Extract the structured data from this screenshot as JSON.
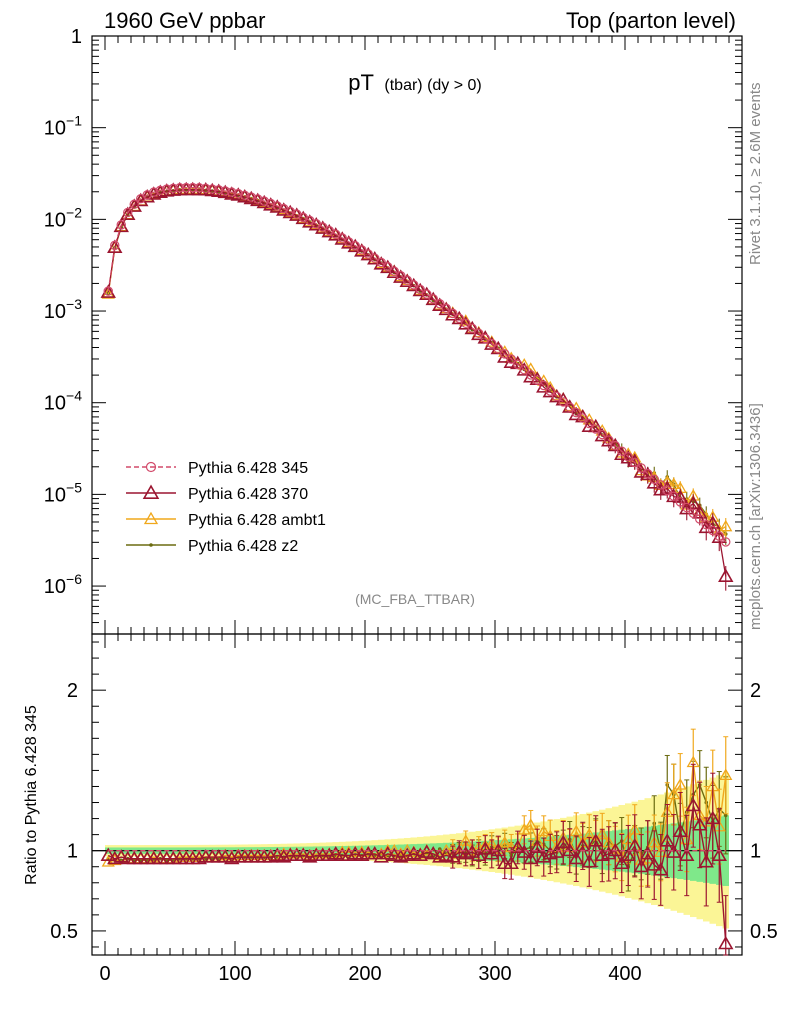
{
  "header": {
    "left": "1960 GeV ppbar",
    "right": "Top (parton level)"
  },
  "side": {
    "rivet": "Rivet 3.1.10, ≥ 2.6M events",
    "mcplots": "mcplots.cern.ch [arXiv:1306.3436]"
  },
  "analysis_tag": "(MC_FBA_TTBAR)",
  "colors": {
    "p345": "#d24a6a",
    "p370": "#9b1530",
    "ambt1": "#f0a81c",
    "z2": "#6b6b10",
    "band_inner": "#7fe88a",
    "band_outer": "#fbf596"
  },
  "chart_data": [
    {
      "type": "line",
      "title_main": "pT",
      "title_sub": "(tbar) (dy > 0)",
      "xlim": [
        -10,
        490
      ],
      "ylim": [
        3e-07,
        1
      ],
      "yscale": "log",
      "yticks": [
        {
          "base": "1",
          "exp": ""
        },
        {
          "base": "10",
          "exp": "−1"
        },
        {
          "base": "10",
          "exp": "−2"
        },
        {
          "base": "10",
          "exp": "−3"
        },
        {
          "base": "10",
          "exp": "−4"
        },
        {
          "base": "10",
          "exp": "−5"
        },
        {
          "base": "10",
          "exp": "−6"
        }
      ],
      "ytick_values": [
        1,
        0.1,
        0.01,
        0.001,
        0.0001,
        1e-05,
        1e-06
      ],
      "x": [
        2.5,
        7.5,
        12.5,
        17.5,
        22.5,
        27.5,
        32.5,
        37.5,
        42.5,
        47.5,
        52.5,
        57.5,
        62.5,
        67.5,
        72.5,
        77.5,
        82.5,
        87.5,
        92.5,
        97.5,
        102.5,
        107.5,
        112.5,
        117.5,
        122.5,
        127.5,
        132.5,
        137.5,
        142.5,
        147.5,
        152.5,
        157.5,
        162.5,
        167.5,
        172.5,
        177.5,
        182.5,
        187.5,
        192.5,
        197.5,
        202.5,
        207.5,
        212.5,
        217.5,
        222.5,
        227.5,
        232.5,
        237.5,
        242.5,
        247.5,
        252.5,
        257.5,
        262.5,
        267.5,
        272.5,
        277.5,
        282.5,
        287.5,
        292.5,
        297.5,
        302.5,
        307.5,
        312.5,
        317.5,
        322.5,
        327.5,
        332.5,
        337.5,
        342.5,
        347.5,
        352.5,
        357.5,
        362.5,
        367.5,
        372.5,
        377.5,
        382.5,
        387.5,
        392.5,
        397.5,
        402.5,
        407.5,
        412.5,
        417.5,
        422.5,
        427.5,
        432.5,
        437.5,
        442.5,
        447.5,
        452.5,
        457.5,
        462.5,
        467.5,
        472.5,
        477.5
      ],
      "reference": [
        0.00165,
        0.0052,
        0.0087,
        0.0119,
        0.0146,
        0.0168,
        0.0185,
        0.0198,
        0.0207,
        0.0214,
        0.0218,
        0.0221,
        0.0222,
        0.0222,
        0.0221,
        0.0218,
        0.0214,
        0.021,
        0.0204,
        0.0198,
        0.0191,
        0.0183,
        0.0175,
        0.0167,
        0.0158,
        0.0149,
        0.014,
        0.0131,
        0.0122,
        0.0114,
        0.0105,
        0.00973,
        0.00896,
        0.00823,
        0.00754,
        0.00688,
        0.00626,
        0.00568,
        0.00515,
        0.00465,
        0.00419,
        0.00377,
        0.00339,
        0.00304,
        0.00272,
        0.00243,
        0.00217,
        0.00193,
        0.00172,
        0.00153,
        0.00136,
        0.0012,
        0.00107,
        0.000943,
        0.000833,
        0.000735,
        0.000648,
        0.000571,
        0.000502,
        0.000442,
        0.000388,
        0.000341,
        0.000299,
        0.000262,
        0.000229,
        0.000201,
        0.000176,
        0.000154,
        0.000134,
        0.000117,
        0.000102,
        8.93e-05,
        7.79e-05,
        6.8e-05,
        5.92e-05,
        5.16e-05,
        4.49e-05,
        3.91e-05,
        3.4e-05,
        2.96e-05,
        2.57e-05,
        2.23e-05,
        1.94e-05,
        1.68e-05,
        1.46e-05,
        1.27e-05,
        1.1e-05,
        9.55e-06,
        8.28e-06,
        7.18e-06,
        6.22e-06,
        5.39e-06,
        4.67e-06,
        4.04e-06,
        3.5e-06,
        3.03e-06
      ],
      "legend": [
        {
          "label": "Pythia 6.428 345",
          "key": "p345"
        },
        {
          "label": "Pythia 6.428 370",
          "key": "p370"
        },
        {
          "label": "Pythia 6.428 ambt1",
          "key": "ambt1"
        },
        {
          "label": "Pythia 6.428 z2",
          "key": "z2"
        }
      ],
      "legend_position": "bottom-left"
    },
    {
      "type": "line",
      "ylabel": "Ratio to Pythia 6.428 345",
      "xlim": [
        -10,
        490
      ],
      "ylim": [
        0.35,
        2.35
      ],
      "yticks": [
        "0.5",
        "1",
        "2"
      ],
      "ytick_values": [
        0.5,
        1,
        2
      ],
      "xticks": [
        "0",
        "100",
        "200",
        "300",
        "400"
      ],
      "xtick_values": [
        0,
        100,
        200,
        300,
        400
      ],
      "series": [
        {
          "name": "Pythia 6.428 370",
          "key": "p370",
          "values": [
            0.97,
            0.95,
            0.96,
            0.95,
            0.95,
            0.95,
            0.95,
            0.95,
            0.95,
            0.95,
            0.95,
            0.95,
            0.95,
            0.95,
            0.95,
            0.96,
            0.96,
            0.96,
            0.96,
            0.95,
            0.96,
            0.96,
            0.96,
            0.96,
            0.96,
            0.96,
            0.97,
            0.96,
            0.97,
            0.97,
            0.97,
            0.96,
            0.97,
            0.97,
            0.97,
            0.98,
            0.97,
            0.97,
            0.98,
            0.97,
            0.98,
            0.98,
            0.96,
            0.98,
            0.97,
            0.96,
            0.97,
            0.98,
            0.97,
            0.99,
            0.98,
            0.96,
            0.97,
            0.96,
            0.99,
            0.98,
            0.99,
            0.97,
            1.01,
            0.98,
            1.0,
            0.92,
            0.92,
            1.02,
            0.99,
            0.95,
            1.02,
            0.96,
            0.98,
            0.99,
            1.05,
            1.0,
            0.95,
            1.03,
            0.93,
            1.06,
            0.97,
            0.98,
            1.0,
            0.92,
            0.97,
            1.03,
            0.9,
            0.98,
            0.91,
            0.88,
            1.06,
            0.99,
            1.12,
            0.97,
            1.28,
            1.16,
            0.93,
            1.2,
            0.97,
            0.42
          ]
        },
        {
          "name": "Pythia 6.428 ambt1",
          "key": "ambt1",
          "values": [
            0.93,
            0.94,
            0.96,
            0.95,
            0.95,
            0.95,
            0.95,
            0.96,
            0.95,
            0.95,
            0.95,
            0.96,
            0.96,
            0.96,
            0.96,
            0.96,
            0.96,
            0.96,
            0.97,
            0.96,
            0.97,
            0.97,
            0.97,
            0.97,
            0.97,
            0.97,
            0.97,
            0.98,
            0.98,
            0.98,
            0.98,
            0.97,
            0.98,
            0.98,
            0.98,
            0.98,
            0.99,
            0.99,
            0.99,
            0.99,
            0.99,
            0.98,
            0.98,
            1.0,
            1.0,
            0.98,
            1.0,
            0.99,
            0.98,
            1.0,
            0.98,
            0.97,
            1.0,
            1.01,
            0.98,
            1.06,
            1.0,
            1.02,
            1.03,
            1.04,
            1.01,
            1.05,
            1.02,
            1.02,
            1.13,
            1.16,
            1.06,
            1.12,
            1.09,
            1.02,
            1.08,
            1.02,
            1.12,
            1.05,
            1.1,
            1.06,
            1.1,
            1.05,
            1.01,
            0.96,
            1.07,
            1.13,
            0.94,
            0.95,
            1.05,
            0.99,
            1.24,
            1.35,
            1.41,
            1.07,
            1.55,
            1.22,
            1.18,
            1.4,
            1.15,
            1.47
          ]
        },
        {
          "name": "Pythia 6.428 z2",
          "key": "z2",
          "values": [
            0.95,
            0.94,
            0.94,
            0.95,
            0.94,
            0.94,
            0.94,
            0.94,
            0.95,
            0.94,
            0.94,
            0.95,
            0.95,
            0.95,
            0.95,
            0.95,
            0.95,
            0.95,
            0.95,
            0.95,
            0.96,
            0.96,
            0.96,
            0.96,
            0.95,
            0.96,
            0.96,
            0.96,
            0.96,
            0.96,
            0.97,
            0.96,
            0.96,
            0.97,
            0.96,
            0.97,
            0.97,
            0.96,
            0.97,
            0.97,
            0.98,
            0.97,
            0.98,
            0.97,
            0.97,
            0.97,
            0.97,
            0.98,
            0.96,
            0.98,
            0.96,
            1.01,
            0.98,
            0.98,
            0.99,
            0.99,
            0.97,
            1.0,
            0.98,
            1.02,
            1.01,
            1.03,
            0.97,
            1.02,
            1.01,
            1.02,
            1.06,
            1.04,
            1.0,
            0.99,
            1.02,
            1.07,
            0.97,
            1.03,
            1.02,
            1.07,
            0.99,
            1.05,
            1.03,
            1.06,
            0.9,
            1.0,
            0.98,
            1.02,
            1.17,
            1.0,
            1.41,
            1.35,
            1.1,
            1.24,
            1.35,
            1.41,
            1.3,
            1.18,
            1.26,
            1.22
          ]
        },
        {
          "name": "Pythia 6.428 345",
          "key": "p345",
          "values": [
            1,
            1,
            1,
            1,
            1,
            1,
            1,
            1,
            1,
            1,
            1,
            1,
            1,
            1,
            1,
            1,
            1,
            1,
            1,
            1,
            1,
            1,
            1,
            1,
            1,
            1,
            1,
            1,
            1,
            1,
            1,
            1,
            1,
            1,
            1,
            1,
            1,
            1,
            1,
            1,
            1,
            1,
            1,
            1,
            1,
            1,
            1,
            1,
            1,
            1,
            1,
            1,
            1,
            1,
            1,
            1,
            1,
            1,
            1,
            1,
            1,
            1,
            1,
            1,
            1,
            1,
            1,
            1,
            1,
            1,
            1,
            1,
            1,
            1,
            1,
            1,
            1,
            1,
            1,
            1,
            1,
            1,
            1,
            1,
            1,
            1,
            1,
            1,
            1,
            1,
            1,
            1,
            1,
            1,
            1,
            1
          ]
        }
      ]
    }
  ]
}
